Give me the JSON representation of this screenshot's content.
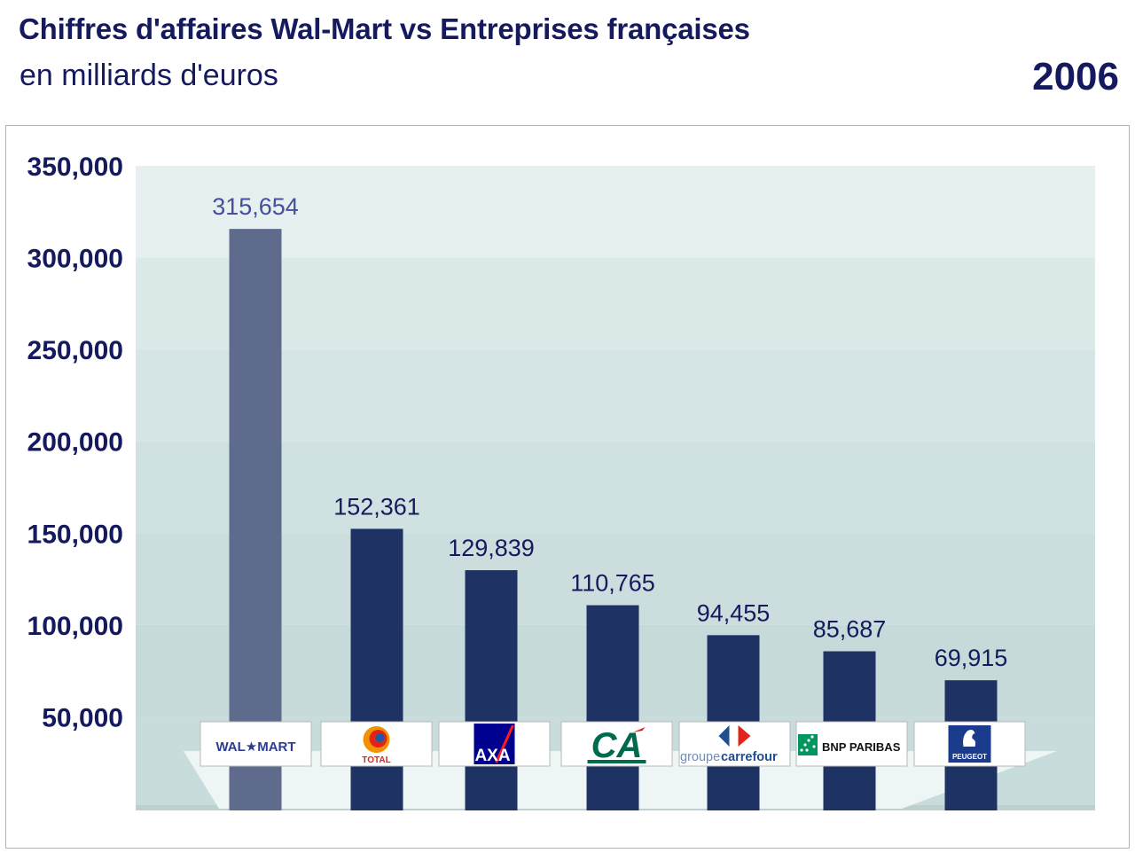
{
  "header": {
    "title": "Chiffres d'affaires Wal-Mart vs Entreprises françaises",
    "subtitle": "en milliards d'euros",
    "year": "2006"
  },
  "colors": {
    "title": "#151a5e",
    "walmart_bar": "#5e6b8d",
    "bar": "#1f3264",
    "walmart_label": "#454f9a",
    "label": "#151a5e",
    "plot_bg": "#cfe0e0"
  },
  "chart_data": {
    "type": "bar",
    "categories": [
      "Wal-Mart",
      "Total",
      "AXA",
      "Crédit Agricole",
      "Carrefour",
      "BNP Paribas",
      "Peugeot"
    ],
    "values": [
      315654,
      152361,
      129839,
      110765,
      94455,
      85687,
      69915
    ],
    "value_labels": [
      "315,654",
      "152,361",
      "129,839",
      "110,765",
      "94,455",
      "85,687",
      "69,915"
    ],
    "ylim": [
      0,
      350000
    ],
    "y_ticks": [
      50000,
      100000,
      150000,
      200000,
      250000,
      300000,
      350000
    ],
    "y_tick_labels": [
      "50,000",
      "100,000",
      "150,000",
      "200,000",
      "250,000",
      "300,000",
      "350,000"
    ],
    "grid": false,
    "legend": "none"
  },
  "logos": [
    {
      "name": "walmart",
      "text": "WAL★MART",
      "color": "#2b3d91"
    },
    {
      "name": "total",
      "text": "TOTAL",
      "color": "#e2231a"
    },
    {
      "name": "axa",
      "text": "AXA",
      "color": "#ffffff"
    },
    {
      "name": "credit-agricole",
      "text": "CA",
      "color": "#006a4e"
    },
    {
      "name": "carrefour",
      "text": "groupecarrefour",
      "color": "#1d4f91"
    },
    {
      "name": "bnp-paribas",
      "text": "BNP PARIBAS",
      "color": "#111111"
    },
    {
      "name": "peugeot",
      "text": "PEUGEOT",
      "color": "#ffffff"
    }
  ]
}
